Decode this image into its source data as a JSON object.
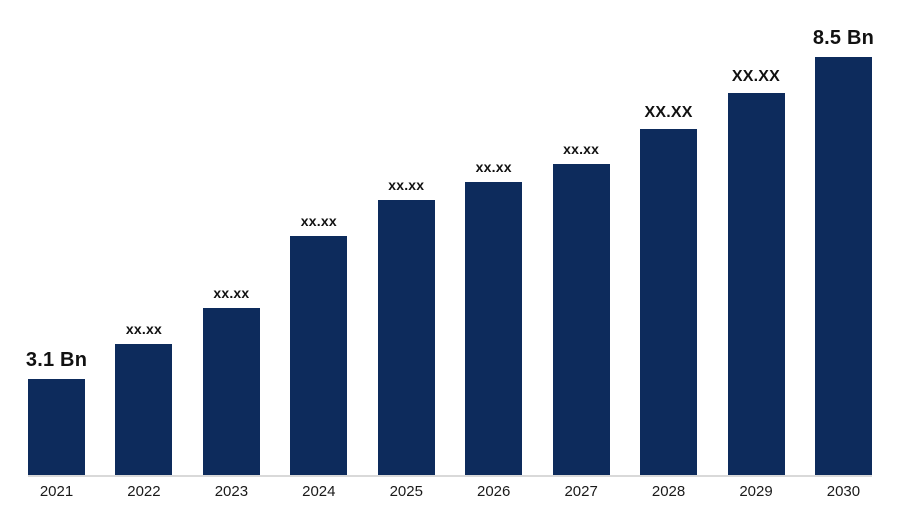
{
  "chart_data": {
    "type": "bar",
    "title": "",
    "xlabel": "",
    "ylabel": "",
    "categories": [
      "2021",
      "2022",
      "2023",
      "2024",
      "2025",
      "2026",
      "2027",
      "2028",
      "2029",
      "2030"
    ],
    "values": [
      3.1,
      3.7,
      4.3,
      5.5,
      6.1,
      6.4,
      6.7,
      7.3,
      7.9,
      8.5
    ],
    "bar_labels": [
      "3.1 Bn",
      "xx.xx",
      "xx.xx",
      "xx.xx",
      "xx.xx",
      "xx.xx",
      "xx.xx",
      "XX.XX",
      "XX.XX",
      "8.5 Bn"
    ],
    "emphasized_labels": [
      true,
      false,
      false,
      false,
      false,
      false,
      false,
      false,
      false,
      true
    ],
    "larger_mid_labels": [
      false,
      false,
      false,
      false,
      false,
      false,
      false,
      true,
      true,
      false
    ],
    "ylim": [
      1.5,
      8.5
    ],
    "grid": false,
    "legend": false,
    "bar_color": "#0d2b5c",
    "axis_color": "#d9d9d9",
    "label_color": "#111111",
    "tick_label_color": "#1a1a1a"
  }
}
